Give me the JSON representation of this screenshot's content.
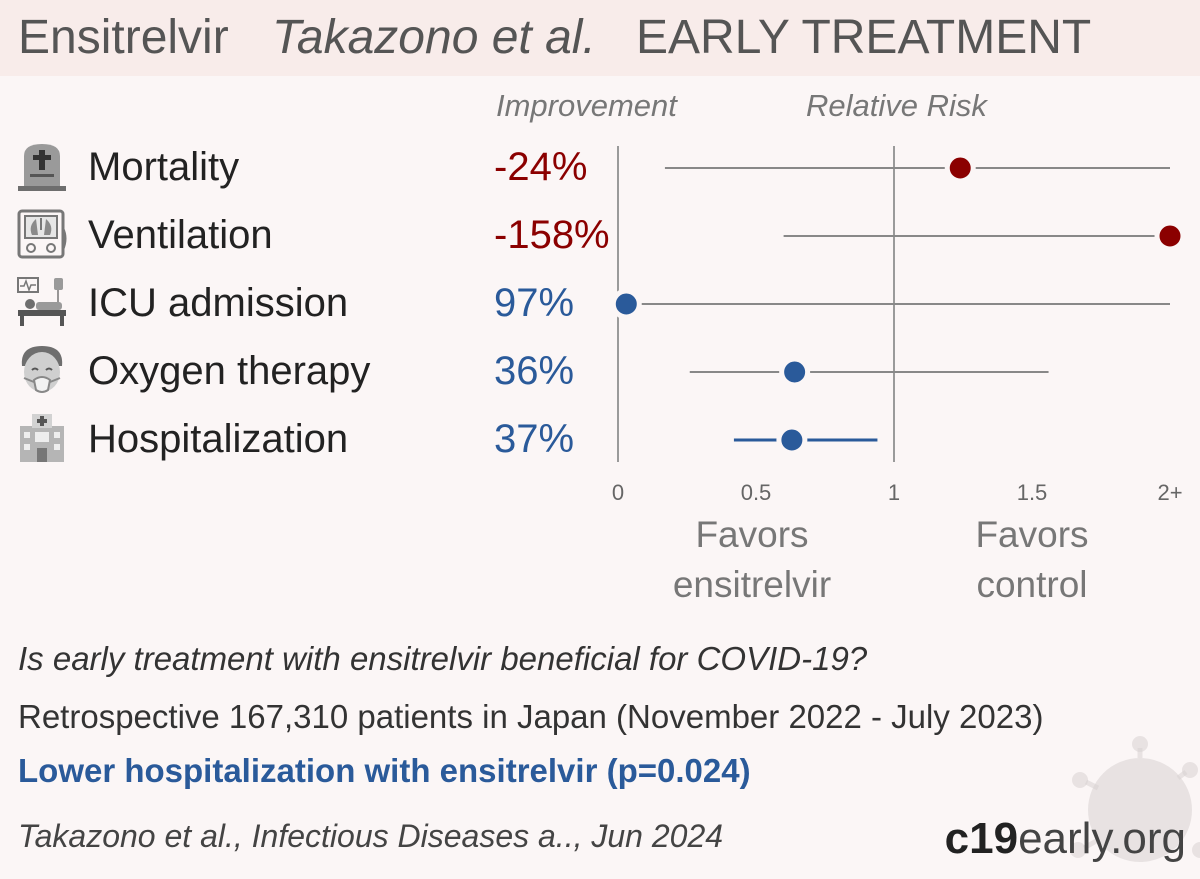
{
  "header": {
    "drug": "Ensitrelvir",
    "authors": "Takazono et al.",
    "category": "EARLY TREATMENT"
  },
  "columns": {
    "improvement": "Improvement",
    "relative_risk": "Relative Risk"
  },
  "colors": {
    "harm": "#8b0000",
    "benefit": "#2a5a9a",
    "header_bg": "#f8ecea"
  },
  "outcomes": [
    {
      "label": "Mortality",
      "icon": "tombstone-icon",
      "improvement": "-24%"
    },
    {
      "label": "Ventilation",
      "icon": "ventilator-icon",
      "improvement": "-158%"
    },
    {
      "label": "ICU admission",
      "icon": "hospital-bed-icon",
      "improvement": "97%"
    },
    {
      "label": "Oxygen therapy",
      "icon": "oxygen-mask-icon",
      "improvement": "36%"
    },
    {
      "label": "Hospitalization",
      "icon": "hospital-building-icon",
      "improvement": "37%"
    }
  ],
  "chart_data": {
    "type": "scatter",
    "subtype": "forest-plot",
    "xlabel": "Relative Risk",
    "xlim": [
      0,
      2
    ],
    "ticks": [
      {
        "value": 0,
        "label": "0"
      },
      {
        "value": 0.5,
        "label": "0.5"
      },
      {
        "value": 1,
        "label": "1"
      },
      {
        "value": 1.5,
        "label": "1.5"
      },
      {
        "value": 2,
        "label": "2+"
      }
    ],
    "reference_lines": [
      0,
      1
    ],
    "series": [
      {
        "outcome": "Mortality",
        "rr": 1.24,
        "ci": [
          0.17,
          2.0
        ],
        "favors": "control"
      },
      {
        "outcome": "Ventilation",
        "rr": 2.0,
        "ci": [
          0.6,
          2.0
        ],
        "favors": "control"
      },
      {
        "outcome": "ICU admission",
        "rr": 0.03,
        "ci": [
          0.03,
          2.0
        ],
        "favors": "ensitrelvir"
      },
      {
        "outcome": "Oxygen therapy",
        "rr": 0.64,
        "ci": [
          0.26,
          1.56
        ],
        "favors": "ensitrelvir"
      },
      {
        "outcome": "Hospitalization",
        "rr": 0.63,
        "ci": [
          0.42,
          0.94
        ],
        "favors": "ensitrelvir"
      }
    ],
    "favors_left": [
      "Favors",
      "ensitrelvir"
    ],
    "favors_right": [
      "Favors",
      "control"
    ]
  },
  "footer": {
    "question": "Is early treatment with ensitrelvir beneficial for COVID-19?",
    "design": "Retrospective 167,310 patients in Japan (November 2022 - July 2023)",
    "conclusion": "Lower hospitalization with ensitrelvir (p=0.024)",
    "citation": "Takazono et al., Infectious Diseases a.., Jun 2024",
    "brand_bold": "c19",
    "brand_rest": "early.org"
  }
}
